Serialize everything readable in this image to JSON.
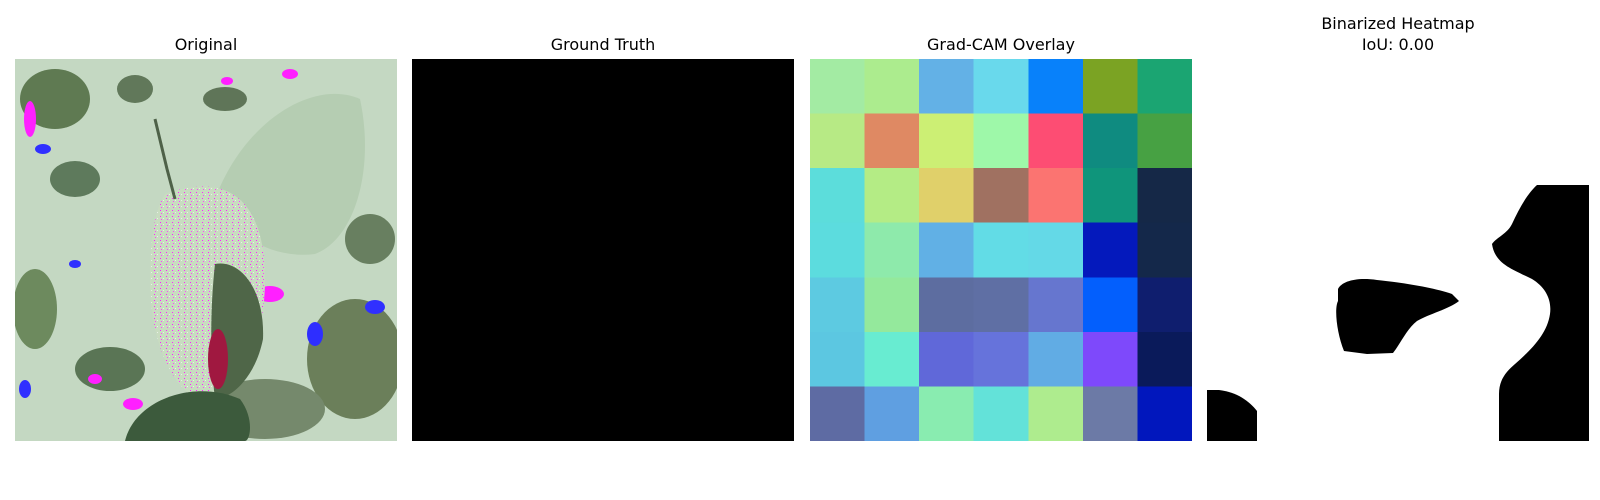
{
  "panels": [
    {
      "id": "original",
      "title": "Original"
    },
    {
      "id": "ground-truth",
      "title": "Ground Truth"
    },
    {
      "id": "gradcam-overlay",
      "title": "Grad-CAM Overlay"
    },
    {
      "id": "binarized-heatmap",
      "title": "Binarized Heatmap",
      "subtitle": "IoU: 0.00"
    }
  ],
  "gradcam_grid": [
    [
      "#a3eba3",
      "#acec8e",
      "#63b1e6",
      "#69d9ec",
      "#0881fa",
      "#7ba323",
      "#1ba572"
    ],
    [
      "#b7ea85",
      "#df8963",
      "#ccef74",
      "#9ef8a9",
      "#fd4d73",
      "#0f8b80",
      "#47a143"
    ],
    [
      "#5cdddb",
      "#b4ec85",
      "#e0d06a",
      "#a07161",
      "#fb7471",
      "#0f957b",
      "#152847"
    ],
    [
      "#5cdcde",
      "#8eeaab",
      "#61b0e5",
      "#62dce6",
      "#64d9e7",
      "#0419bc",
      "#14284a"
    ],
    [
      "#5dcae1",
      "#94e99c",
      "#5d6da0",
      "#5f6fa4",
      "#6676cf",
      "#035ffd",
      "#0f1e6e"
    ],
    [
      "#5cc7e1",
      "#68ecd1",
      "#6068d9",
      "#6673db",
      "#61ace4",
      "#7e49fb",
      "#0a1a5a"
    ],
    [
      "#5e6ba3",
      "#5f9fe1",
      "#89ecb0",
      "#63e2d9",
      "#aeec8e",
      "#6c7aa6",
      "#0117bd"
    ]
  ]
}
